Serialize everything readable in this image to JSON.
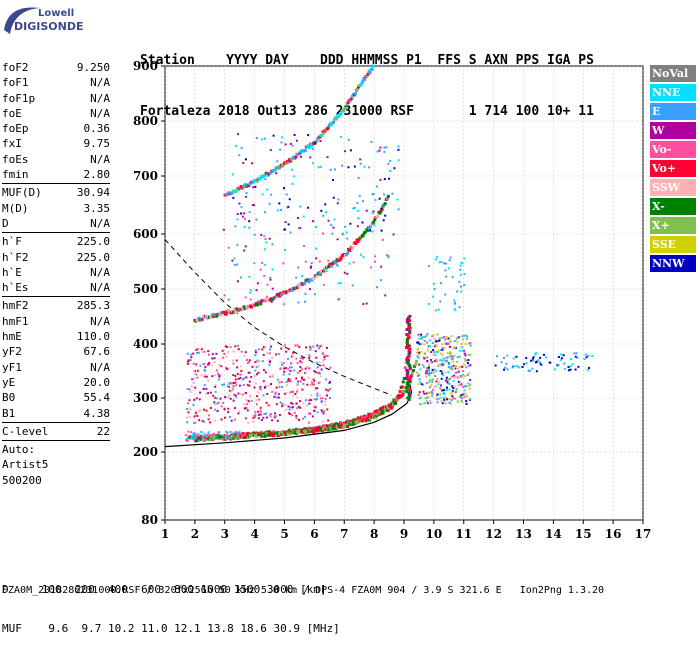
{
  "logo": {
    "top": "Lowell",
    "bottom": "DIGISONDE"
  },
  "header": {
    "line1": "Station    YYYY DAY    DDD HHMMSS P1  FFS S AXN PPS IGA PS",
    "line2": "Fortaleza 2018 Out13 286 231000 RSF       1 714 100 10+ 11"
  },
  "params_group1": [
    {
      "name": "foF2",
      "value": "9.250"
    },
    {
      "name": "foF1",
      "value": "N/A"
    },
    {
      "name": "foF1p",
      "value": "N/A"
    },
    {
      "name": "foE",
      "value": "N/A"
    },
    {
      "name": "foEp",
      "value": "0.36"
    },
    {
      "name": "fxI",
      "value": "9.75"
    },
    {
      "name": "foEs",
      "value": "N/A"
    },
    {
      "name": "fmin",
      "value": "2.80"
    }
  ],
  "params_group2": [
    {
      "name": "MUF(D)",
      "value": "30.94"
    },
    {
      "name": "M(D)",
      "value": "3.35"
    },
    {
      "name": "D",
      "value": "N/A"
    }
  ],
  "params_group3": [
    {
      "name": "h`F",
      "value": "225.0"
    },
    {
      "name": "h`F2",
      "value": "225.0"
    },
    {
      "name": "h`E",
      "value": "N/A"
    },
    {
      "name": "h`Es",
      "value": "N/A"
    }
  ],
  "params_group4": [
    {
      "name": "hmF2",
      "value": "285.3"
    },
    {
      "name": "hmF1",
      "value": "N/A"
    },
    {
      "name": "hmE",
      "value": "110.0"
    },
    {
      "name": "yF2",
      "value": "67.6"
    },
    {
      "name": "yF1",
      "value": "N/A"
    },
    {
      "name": "yE",
      "value": "20.0"
    },
    {
      "name": "B0",
      "value": "55.4"
    },
    {
      "name": "B1",
      "value": "4.38"
    }
  ],
  "params_group5": [
    {
      "name": "C-level",
      "value": "22"
    }
  ],
  "auto": {
    "line1": "Auto:",
    "line2": "Artist5",
    "line3": "500200"
  },
  "legend": [
    {
      "label": "NoVal",
      "bg": "#808080",
      "fg": "#ffffff"
    },
    {
      "label": "NNE",
      "bg": "#00e0ff",
      "fg": "#ffffff"
    },
    {
      "label": "E",
      "bg": "#3aa0ff",
      "fg": "#ffffff"
    },
    {
      "label": "W",
      "bg": "#b000a0",
      "fg": "#ffffff"
    },
    {
      "label": "Vo-",
      "bg": "#ff50a0",
      "fg": "#ffffff"
    },
    {
      "label": "Vo+",
      "bg": "#ff0030",
      "fg": "#ffffff"
    },
    {
      "label": "SSW",
      "bg": "#ffb0b0",
      "fg": "#ffffff"
    },
    {
      "label": "X-",
      "bg": "#008000",
      "fg": "#ffffff"
    },
    {
      "label": "X+",
      "bg": "#80c050",
      "fg": "#ffffff"
    },
    {
      "label": "SSE",
      "bg": "#d0d000",
      "fg": "#ffffff"
    },
    {
      "label": "NNW",
      "bg": "#0000c0",
      "fg": "#ffffff"
    }
  ],
  "footer": {
    "line1": "D     100  200  400  600  800 1000 1500 3000 [km]",
    "line2": "MUF    9.6  9.7 10.2 11.0 12.1 13.8 18.6 30.9 [MHz]",
    "line3": "FZA0M_2018286231000.RSF / 320fx256h 50 kHz 5.0 km / DPS-4 FZA0M 904 / 3.9 S 321.6 E   Ion2Png 1.3.20"
  },
  "chart_data": {
    "type": "scatter",
    "xlim": [
      1,
      17
    ],
    "ylim": [
      80,
      900
    ],
    "x_ticks": [
      "1",
      "2",
      "3",
      "4",
      "5",
      "6",
      "7",
      "8",
      "9",
      "10",
      "11",
      "12",
      "13",
      "14",
      "15",
      "16",
      "17"
    ],
    "y_ticks": [
      "80",
      "200",
      "300",
      "400",
      "500",
      "600",
      "700",
      "800",
      "900"
    ],
    "traces": [
      {
        "name": "O-trace F2",
        "points": [
          [
            1.8,
            225
          ],
          [
            3,
            228
          ],
          [
            4,
            232
          ],
          [
            5,
            236
          ],
          [
            6,
            242
          ],
          [
            7,
            252
          ],
          [
            7.5,
            260
          ],
          [
            8,
            270
          ],
          [
            8.5,
            285
          ],
          [
            8.8,
            300
          ],
          [
            9.0,
            330
          ],
          [
            9.1,
            380
          ],
          [
            9.15,
            430
          ],
          [
            9.2,
            450
          ]
        ]
      },
      {
        "name": "X-trace F2",
        "points": [
          [
            2,
            222
          ],
          [
            3,
            225
          ],
          [
            4,
            229
          ],
          [
            5,
            233
          ],
          [
            6,
            238
          ],
          [
            7,
            247
          ],
          [
            8,
            263
          ],
          [
            8.6,
            283
          ],
          [
            9.0,
            310
          ],
          [
            9.3,
            345
          ],
          [
            9.45,
            375
          ]
        ]
      },
      {
        "name": "2nd hop",
        "points": [
          [
            2,
            443
          ],
          [
            3,
            455
          ],
          [
            4,
            470
          ],
          [
            5,
            492
          ],
          [
            6,
            520
          ],
          [
            7,
            560
          ],
          [
            8,
            620
          ],
          [
            8.5,
            665
          ]
        ]
      },
      {
        "name": "3rd hop",
        "points": [
          [
            3,
            665
          ],
          [
            4,
            690
          ],
          [
            5,
            720
          ],
          [
            6,
            760
          ],
          [
            7,
            820
          ],
          [
            7.6,
            870
          ],
          [
            8,
            900
          ]
        ]
      }
    ],
    "profile_solid": [
      [
        1,
        210
      ],
      [
        3,
        217
      ],
      [
        5,
        226
      ],
      [
        7,
        240
      ],
      [
        8,
        255
      ],
      [
        8.6,
        270
      ],
      [
        9.1,
        290
      ],
      [
        9.25,
        310
      ],
      [
        9.2,
        325
      ]
    ],
    "profile_dashed": [
      [
        1,
        590
      ],
      [
        1.5,
        560
      ],
      [
        2,
        530
      ],
      [
        3,
        475
      ],
      [
        4,
        430
      ],
      [
        5,
        395
      ],
      [
        6,
        365
      ],
      [
        7,
        340
      ],
      [
        8,
        318
      ],
      [
        8.6,
        305
      ]
    ]
  }
}
